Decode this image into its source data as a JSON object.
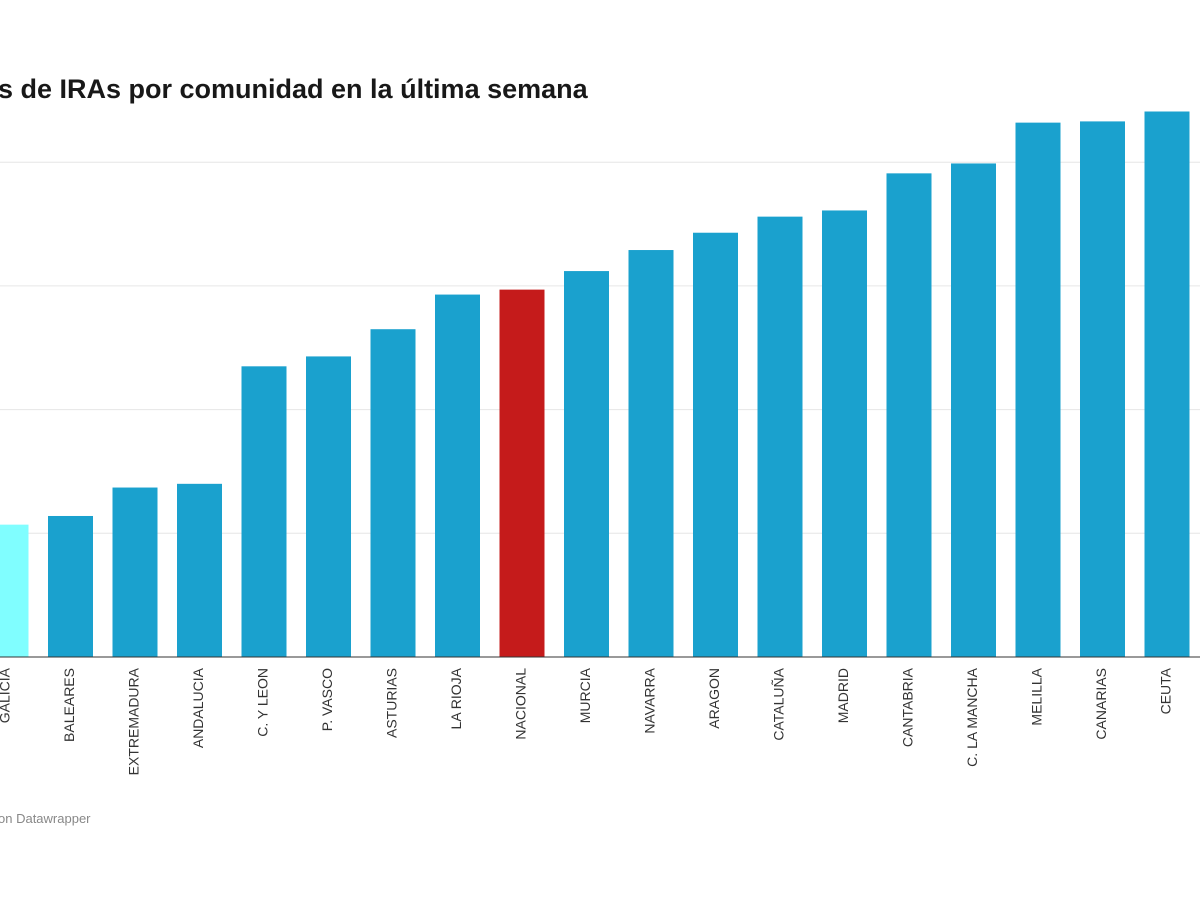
{
  "chart_data": {
    "type": "bar",
    "title": "s de IRAs por comunidad en la última semana",
    "footer": "on Datawrapper",
    "categories": [
      "GALICIA",
      "BALEARES",
      "EXTREMADURA",
      "ANDALUCIA",
      "C. Y LEON",
      "P. VASCO",
      "ASTURIAS",
      "LA RIOJA",
      "NACIONAL",
      "MURCIA",
      "NAVARRA",
      "ARAGON",
      "CATALUÑA",
      "MADRID",
      "CANTABRIA",
      "C. LA MANCHA",
      "MELILLA",
      "CANARIAS",
      "CEUTA"
    ],
    "values": [
      1.07,
      1.14,
      1.37,
      1.4,
      2.35,
      2.43,
      2.65,
      2.93,
      2.97,
      3.12,
      3.29,
      3.43,
      3.56,
      3.61,
      3.91,
      3.99,
      4.32,
      4.33,
      4.41
    ],
    "ylim": [
      0,
      4.6
    ],
    "gridlines": [
      1,
      2,
      3,
      4
    ],
    "grid": true,
    "xlabel": "",
    "ylabel": "",
    "colors": {
      "default": "#1aa1ce",
      "highlight": "#c51b1b",
      "first": "#80feff"
    },
    "bar_colors": [
      "first",
      "default",
      "default",
      "default",
      "default",
      "default",
      "default",
      "default",
      "highlight",
      "default",
      "default",
      "default",
      "default",
      "default",
      "default",
      "default",
      "default",
      "default",
      "default"
    ]
  }
}
